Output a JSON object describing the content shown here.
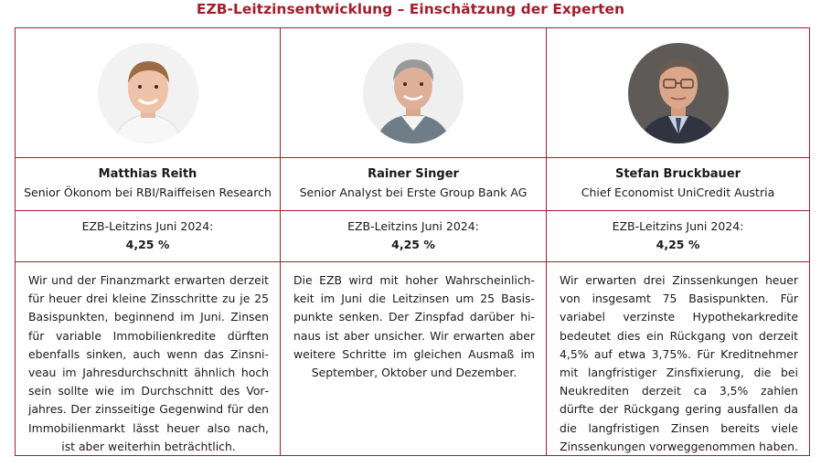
{
  "title": "EZB-Leitzinsentwicklung – Einschätzung der Experten",
  "colors": {
    "accent": "#a51d2d"
  },
  "experts": [
    {
      "photo": "portrait-photo",
      "name": "Matthias Reith",
      "role": "Senior Ökonom bei RBI/Raiffeisen Research",
      "rate_label": "EZB-Leitzins Juni 2024:",
      "rate_value": "4,25 %",
      "statement": "Wir und der Finanzmarkt erwarten derzeit für heuer drei kleine Zinsschritte zu je 25 Basispunkten, beginnend im Juni. Zinsen für variable Immobilienkredite dürften ebenfalls sinken, auch wenn das Zinsni­veau im Jahresdurchschnitt ähnlich hoch sein sollte wie im Durchschnitt des Vor­jahres. Der zinsseitige Gegenwind für den Immobilienmarkt lässt heuer also nach, ist aber weiterhin beträchtlich."
    },
    {
      "photo": "portrait-photo",
      "name": "Rainer Singer",
      "role": "Senior Analyst bei Erste Group Bank AG",
      "rate_label": "EZB-Leitzins Juni 2024:",
      "rate_value": "4,25 %",
      "statement": "Die EZB wird mit hoher Wahrscheinlich­keit im Juni die Leitzinsen um 25 Basis­punkte senken. Der Zinspfad darüber hi­naus ist aber unsicher. Wir erwarten aber weitere Schritte im gleichen Ausmaß im September, Oktober und Dezember."
    },
    {
      "photo": "portrait-photo",
      "name": "Stefan Bruckbauer",
      "role": "Chief Economist UniCredit Austria",
      "rate_label": "EZB-Leitzins Juni 2024:",
      "rate_value": "4,25 %",
      "statement": "Wir erwarten drei Zinssenkungen heuer von insgesamt 75 Basispunkten. Für varia­bel verzinste Hypothekarkredite bedeutet dies ein Rückgang von derzeit 4,5% auf etwa 3,75%. Für Kreditnehmer mit lang­fristiger Zinsfixierung, die bei Neukrediten derzeit ca 3,5% zahlen dürfte der Rück­gang gering ausfallen da die langfristigen Zinsen bereits viele Zinssenkungen vor­weggenommen haben."
    }
  ]
}
